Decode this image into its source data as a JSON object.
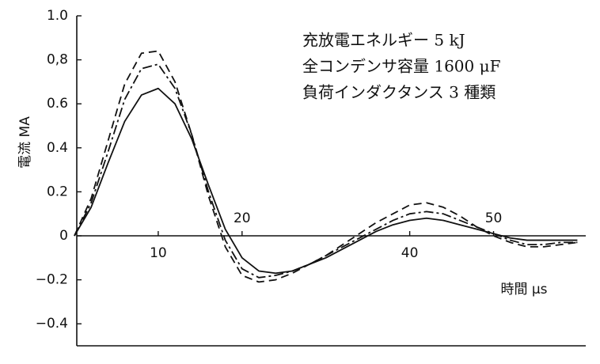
{
  "chart_data": {
    "type": "line",
    "y_label": "電流 MA",
    "x_label": "時間 μs",
    "annotations": [
      "充放電エネルギー 5 kJ",
      "全コンデンサ容量 1600 μF",
      "負荷インダクタンス 3 種類"
    ],
    "x": [
      0,
      2,
      4,
      6,
      8,
      10,
      12,
      14,
      16,
      18,
      20,
      22,
      24,
      26,
      28,
      30,
      32,
      34,
      36,
      38,
      40,
      42,
      44,
      46,
      48,
      50,
      52,
      54,
      56,
      58,
      60
    ],
    "series": [
      {
        "color": "#111111",
        "line_style": "solid",
        "values": [
          0,
          0.13,
          0.33,
          0.52,
          0.64,
          0.67,
          0.6,
          0.44,
          0.23,
          0.03,
          -0.1,
          -0.16,
          -0.17,
          -0.16,
          -0.13,
          -0.1,
          -0.06,
          -0.02,
          0.02,
          0.05,
          0.07,
          0.08,
          0.07,
          0.05,
          0.03,
          0.01,
          -0.01,
          -0.02,
          -0.02,
          -0.02,
          -0.02
        ]
      },
      {
        "color": "#111111",
        "line_style": "dashdot",
        "values": [
          0,
          0.15,
          0.38,
          0.62,
          0.76,
          0.78,
          0.67,
          0.46,
          0.2,
          -0.02,
          -0.15,
          -0.19,
          -0.18,
          -0.16,
          -0.13,
          -0.09,
          -0.05,
          -0.01,
          0.03,
          0.07,
          0.1,
          0.11,
          0.1,
          0.07,
          0.04,
          0.01,
          -0.02,
          -0.04,
          -0.04,
          -0.03,
          -0.03
        ]
      },
      {
        "color": "#111111",
        "line_style": "dashed",
        "values": [
          0,
          0.17,
          0.43,
          0.69,
          0.83,
          0.84,
          0.7,
          0.46,
          0.18,
          -0.05,
          -0.18,
          -0.21,
          -0.2,
          -0.17,
          -0.13,
          -0.09,
          -0.04,
          0.01,
          0.06,
          0.1,
          0.14,
          0.15,
          0.13,
          0.09,
          0.04,
          0,
          -0.03,
          -0.05,
          -0.05,
          -0.04,
          -0.03
        ]
      }
    ],
    "xlim": [
      0,
      61
    ],
    "xticks": [
      10,
      20,
      40,
      50
    ],
    "ylim": [
      -0.5,
      1.0
    ],
    "yticks": [
      {
        "value": 1.0,
        "label": "1.0"
      },
      {
        "value": 0.8,
        "label": "0,8"
      },
      0.6,
      0.4,
      0.2,
      0,
      {
        "value": -0.2,
        "label": "−0.2"
      },
      {
        "value": -0.4,
        "label": "−0.4"
      }
    ]
  }
}
